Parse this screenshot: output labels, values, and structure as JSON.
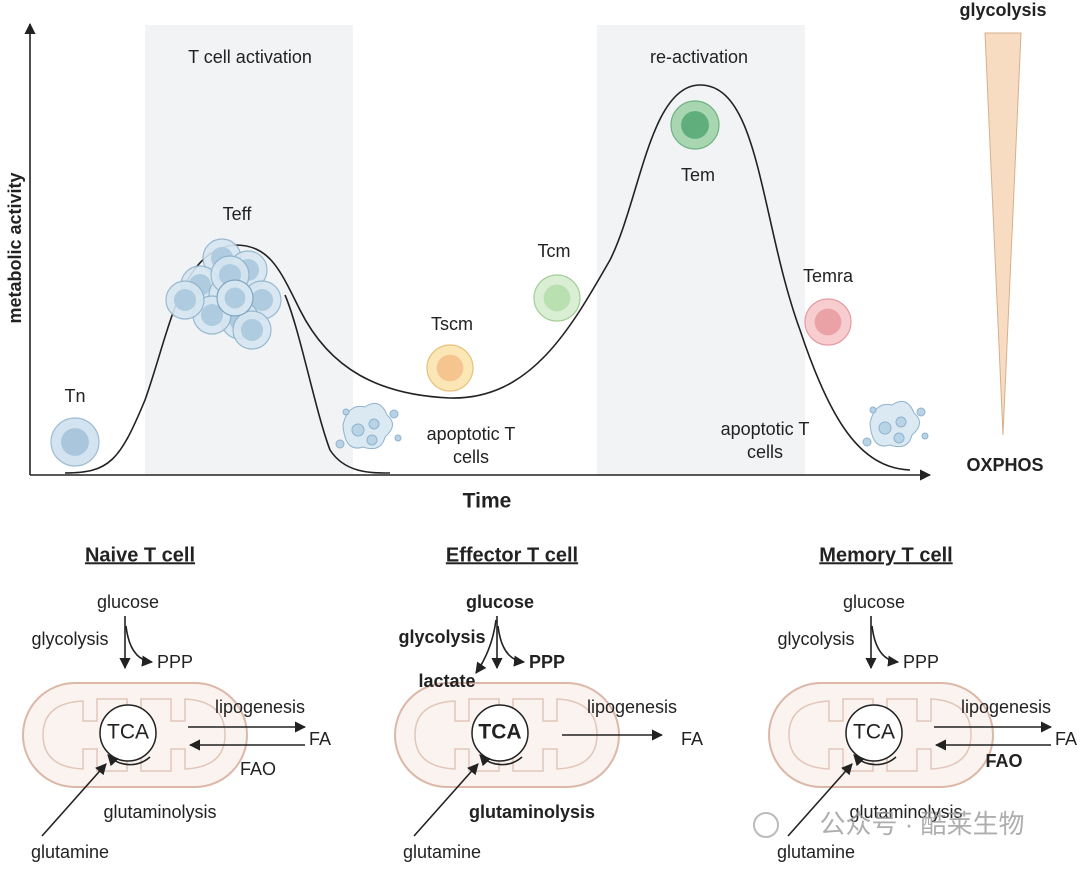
{
  "top": {
    "y_axis_label": "metabolic activity",
    "x_axis_label": "Time",
    "phases": [
      "T cell activation",
      "re-activation"
    ],
    "cells": [
      "Tn",
      "Teff",
      "Tscm",
      "Tcm",
      "Tem",
      "Temra"
    ],
    "apoptotic_labels": [
      [
        "apoptotic T",
        "cells"
      ],
      [
        "apoptotic T",
        "cells"
      ]
    ],
    "gradient": {
      "top": "glycolysis",
      "bottom": "OXPHOS"
    }
  },
  "panels": [
    {
      "title": "Naive T cell",
      "glucose": "glucose",
      "glycolysis": "glycolysis",
      "ppp": "PPP",
      "tca": "TCA",
      "lipogenesis": "lipogenesis",
      "fa": "FA",
      "fao": "FAO",
      "glutaminolysis": "glutaminolysis",
      "glutamine": "glutamine"
    },
    {
      "title": "Effector T cell",
      "glucose": "glucose",
      "glycolysis": "glycolysis",
      "ppp": "PPP",
      "lactate": "lactate",
      "tca": "TCA",
      "lipogenesis": "lipogenesis",
      "fa": "FA",
      "glutaminolysis": "glutaminolysis",
      "glutamine": "glutamine"
    },
    {
      "title": "Memory T cell",
      "glucose": "glucose",
      "glycolysis": "glycolysis",
      "ppp": "PPP",
      "tca": "TCA",
      "lipogenesis": "lipogenesis",
      "fa": "FA",
      "fao": "FAO",
      "glutaminolysis": "glutaminolysis",
      "glutamine": "glutamine"
    }
  ],
  "watermark": "公众号 · 酷莱生物"
}
